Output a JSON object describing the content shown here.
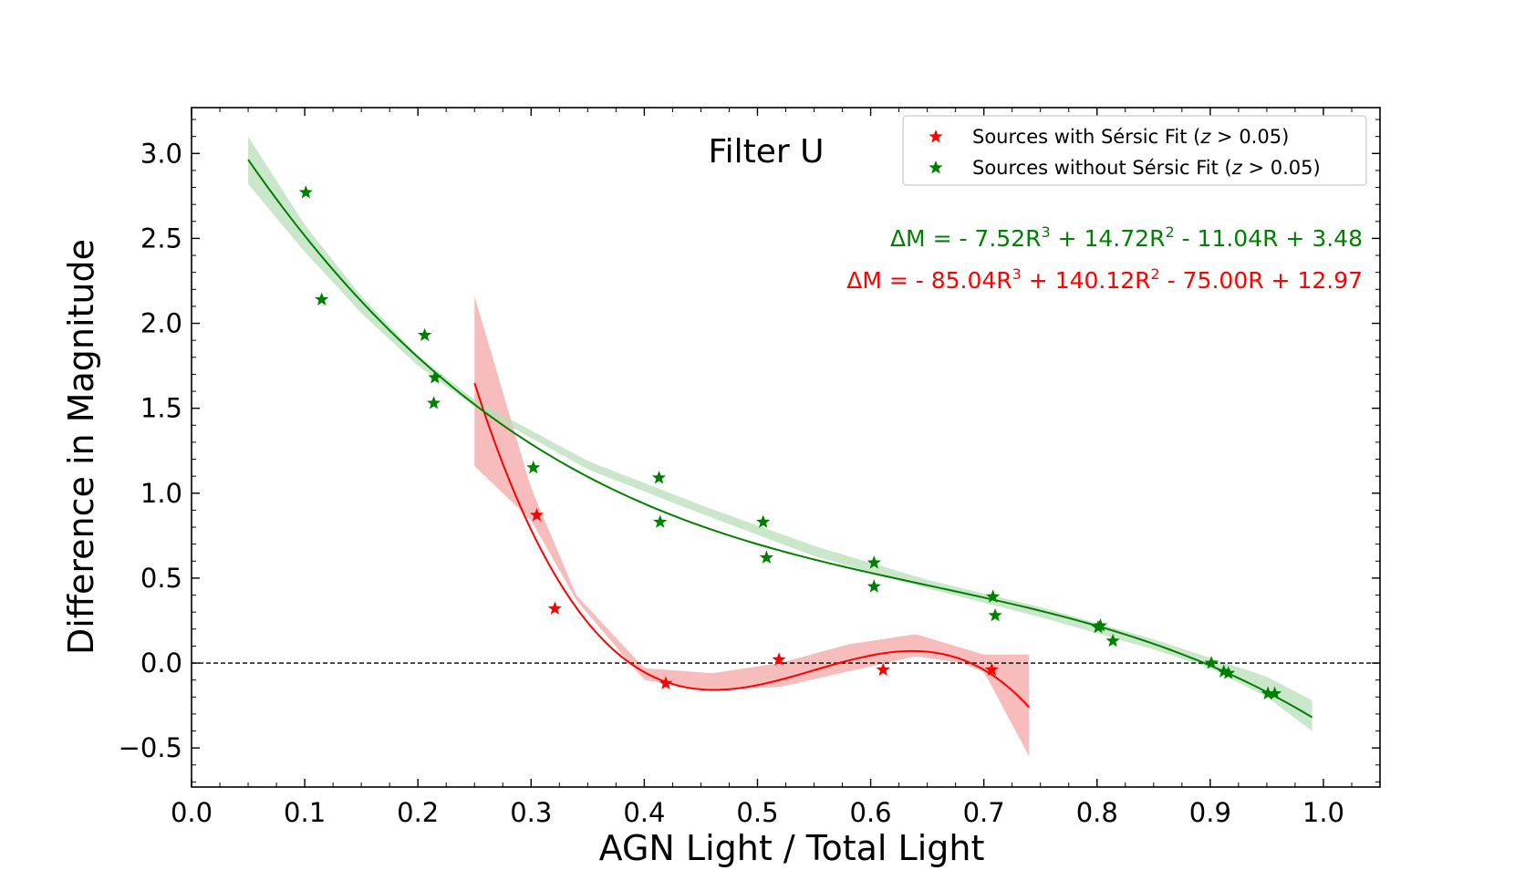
{
  "chart_data": {
    "type": "scatter",
    "title": "Filter U",
    "xlabel": "AGN Light / Total Light",
    "ylabel": "Difference in Magnitude",
    "xlim": [
      0.0,
      1.05
    ],
    "ylim": [
      -0.73,
      3.27
    ],
    "xticks": [
      0.0,
      0.1,
      0.2,
      0.3,
      0.4,
      0.5,
      0.6,
      0.7,
      0.8,
      0.9,
      1.0
    ],
    "xtick_labels": [
      "0.0",
      "0.1",
      "0.2",
      "0.3",
      "0.4",
      "0.5",
      "0.6",
      "0.7",
      "0.8",
      "0.9",
      "1.0"
    ],
    "yticks": [
      -0.5,
      0.0,
      0.5,
      1.0,
      1.5,
      2.0,
      2.5,
      3.0
    ],
    "ytick_labels": [
      "−0.5",
      "0.0",
      "0.5",
      "1.0",
      "1.5",
      "2.0",
      "2.5",
      "3.0"
    ],
    "reference_line_y": 0.0,
    "grid": false,
    "legend_position": "top-right",
    "series": [
      {
        "name": "Sources with Sérsic Fit (z > 0.05)",
        "legend_prefix": "Sources with Sérsic Fit (",
        "legend_var": "z",
        "legend_suffix": " > 0.05)",
        "color": "#ff0000",
        "fill_color": "#f4a7a7",
        "marker": "star",
        "points": [
          {
            "x": 0.305,
            "y": 0.87
          },
          {
            "x": 0.321,
            "y": 0.32
          },
          {
            "x": 0.419,
            "y": -0.12
          },
          {
            "x": 0.519,
            "y": 0.02
          },
          {
            "x": 0.611,
            "y": -0.04
          },
          {
            "x": 0.707,
            "y": -0.04
          }
        ],
        "fit": {
          "coefficients": [
            -85.04,
            140.12,
            -75.0,
            12.97
          ],
          "x_range": [
            0.25,
            0.74
          ],
          "band_curve": [
            {
              "x": 0.25,
              "lo": 1.16,
              "hi": 2.16
            },
            {
              "x": 0.3,
              "lo": 0.84,
              "hi": 1.03
            },
            {
              "x": 0.34,
              "lo": 0.37,
              "hi": 0.4
            },
            {
              "x": 0.4,
              "lo": -0.1,
              "hi": -0.03
            },
            {
              "x": 0.46,
              "lo": -0.16,
              "hi": -0.06
            },
            {
              "x": 0.52,
              "lo": -0.14,
              "hi": 0.0
            },
            {
              "x": 0.58,
              "lo": -0.05,
              "hi": 0.11
            },
            {
              "x": 0.64,
              "lo": 0.04,
              "hi": 0.17
            },
            {
              "x": 0.68,
              "lo": 0.0,
              "hi": 0.09
            },
            {
              "x": 0.7,
              "lo": -0.05,
              "hi": 0.05
            },
            {
              "x": 0.74,
              "lo": -0.55,
              "hi": 0.05
            }
          ]
        }
      },
      {
        "name": "Sources without Sérsic Fit (z > 0.05)",
        "legend_prefix": "Sources without Sérsic Fit (",
        "legend_var": "z",
        "legend_suffix": " > 0.05)",
        "color": "#008000",
        "fill_color": "#b9dfb9",
        "marker": "star",
        "points": [
          {
            "x": 0.101,
            "y": 2.77
          },
          {
            "x": 0.115,
            "y": 2.14
          },
          {
            "x": 0.206,
            "y": 1.93
          },
          {
            "x": 0.215,
            "y": 1.68
          },
          {
            "x": 0.214,
            "y": 1.53
          },
          {
            "x": 0.302,
            "y": 1.15
          },
          {
            "x": 0.413,
            "y": 1.09
          },
          {
            "x": 0.414,
            "y": 0.83
          },
          {
            "x": 0.505,
            "y": 0.83
          },
          {
            "x": 0.508,
            "y": 0.62
          },
          {
            "x": 0.603,
            "y": 0.59
          },
          {
            "x": 0.603,
            "y": 0.45
          },
          {
            "x": 0.708,
            "y": 0.39
          },
          {
            "x": 0.71,
            "y": 0.28
          },
          {
            "x": 0.801,
            "y": 0.21
          },
          {
            "x": 0.803,
            "y": 0.22
          },
          {
            "x": 0.814,
            "y": 0.13
          },
          {
            "x": 0.901,
            "y": 0.0
          },
          {
            "x": 0.912,
            "y": -0.05
          },
          {
            "x": 0.916,
            "y": -0.06
          },
          {
            "x": 0.951,
            "y": -0.18
          },
          {
            "x": 0.957,
            "y": -0.18
          }
        ],
        "fit": {
          "coefficients": [
            -7.52,
            14.72,
            -11.04,
            3.48
          ],
          "x_range": [
            0.05,
            0.99
          ],
          "band_curve": [
            {
              "x": 0.05,
              "lo": 2.82,
              "hi": 3.1
            },
            {
              "x": 0.1,
              "lo": 2.42,
              "hi": 2.58
            },
            {
              "x": 0.15,
              "lo": 2.06,
              "hi": 2.16
            },
            {
              "x": 0.2,
              "lo": 1.75,
              "hi": 1.81
            },
            {
              "x": 0.25,
              "lo": 1.51,
              "hi": 1.55
            },
            {
              "x": 0.35,
              "lo": 1.14,
              "hi": 1.19
            },
            {
              "x": 0.45,
              "lo": 0.88,
              "hi": 0.93
            },
            {
              "x": 0.55,
              "lo": 0.63,
              "hi": 0.69
            },
            {
              "x": 0.65,
              "lo": 0.44,
              "hi": 0.49
            },
            {
              "x": 0.75,
              "lo": 0.27,
              "hi": 0.33
            },
            {
              "x": 0.85,
              "lo": 0.08,
              "hi": 0.14
            },
            {
              "x": 0.9,
              "lo": -0.03,
              "hi": 0.03
            },
            {
              "x": 0.95,
              "lo": -0.2,
              "hi": -0.08
            },
            {
              "x": 0.99,
              "lo": -0.4,
              "hi": -0.22
            }
          ]
        }
      }
    ],
    "annotations": [
      {
        "color": "#008000",
        "parts": [
          {
            "t": "ΔM = - 7.52R"
          },
          {
            "t": "3",
            "sup": true
          },
          {
            "t": " + 14.72R"
          },
          {
            "t": "2",
            "sup": true
          },
          {
            "t": " - 11.04R + 3.48"
          }
        ]
      },
      {
        "color": "#ff0000",
        "parts": [
          {
            "t": "ΔM = - 85.04R"
          },
          {
            "t": "3",
            "sup": true
          },
          {
            "t": " + 140.12R"
          },
          {
            "t": "2",
            "sup": true
          },
          {
            "t": " - 75.00R + 12.97"
          }
        ]
      }
    ]
  }
}
